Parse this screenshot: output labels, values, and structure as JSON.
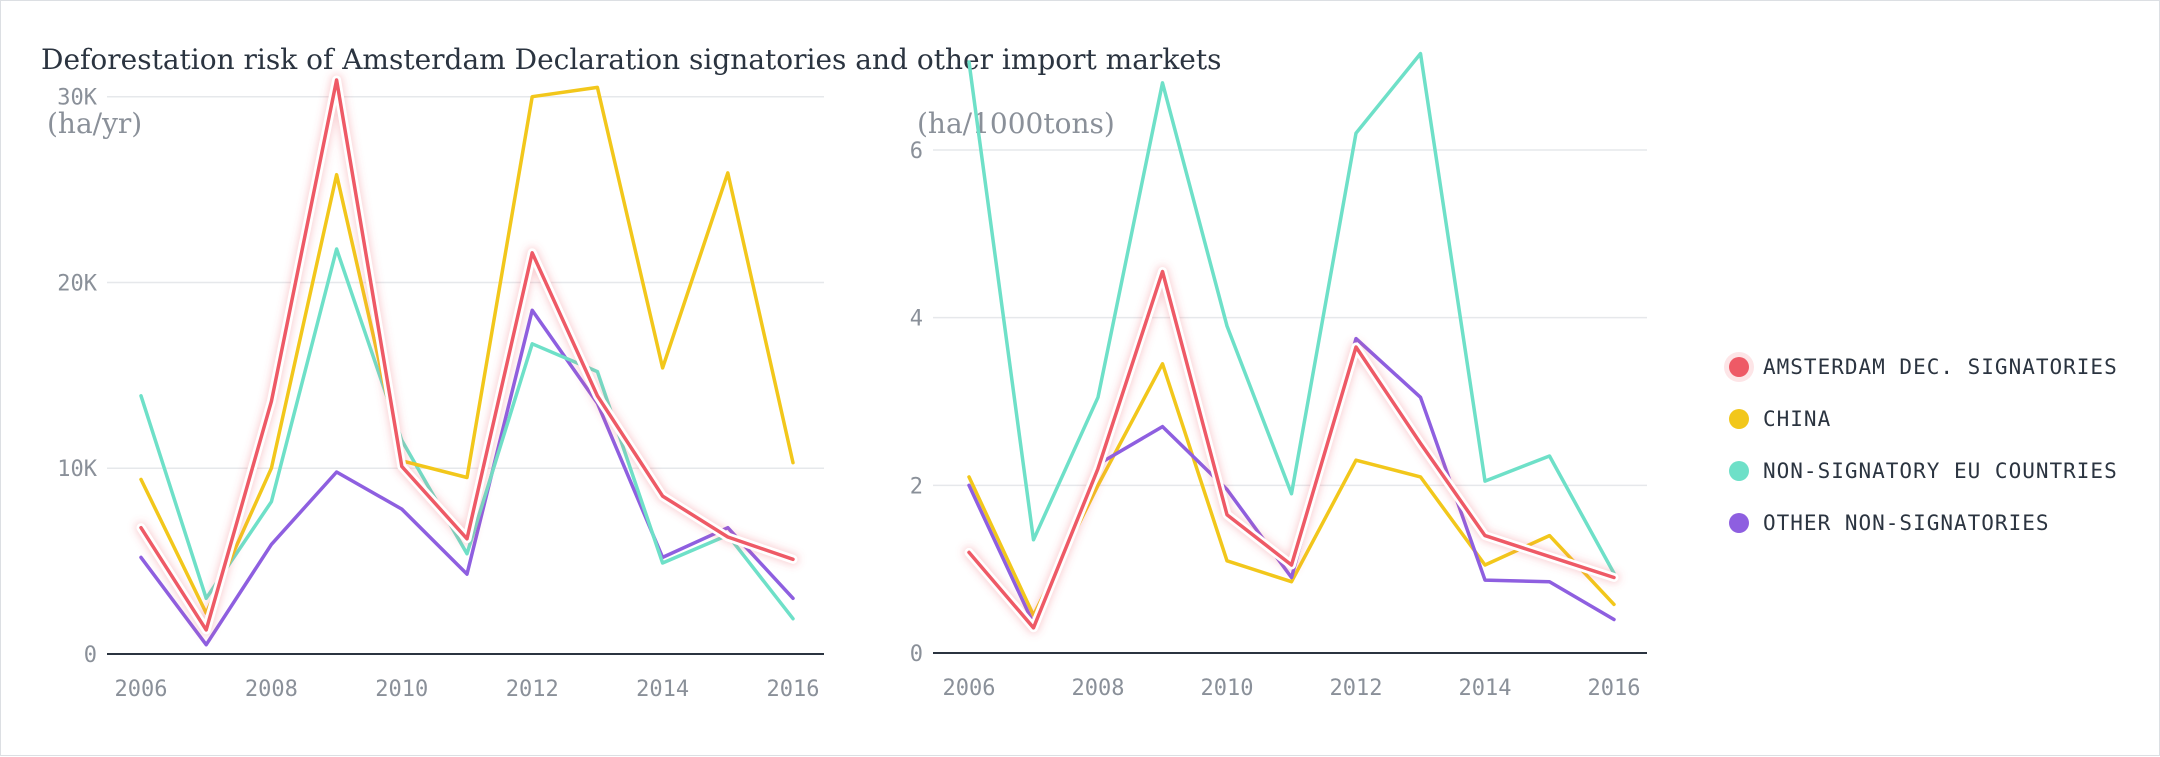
{
  "title": "Deforestation risk of Amsterdam Declaration signatories and other import markets",
  "colors": {
    "amsterdam": "#ee5a66",
    "china": "#f2c71b",
    "eu": "#6ee0c8",
    "other": "#8e5fe0"
  },
  "legend": {
    "placement": "right",
    "items": [
      {
        "key": "amsterdam",
        "label": "AMSTERDAM DEC. SIGNATORIES"
      },
      {
        "key": "china",
        "label": "CHINA"
      },
      {
        "key": "eu",
        "label": "NON-SIGNATORY EU COUNTRIES"
      },
      {
        "key": "other",
        "label": "OTHER NON-SIGNATORIES"
      }
    ]
  },
  "chart_data": [
    {
      "type": "line",
      "unit_label": "(ha/yr)",
      "x": [
        2006,
        2007,
        2008,
        2009,
        2010,
        2011,
        2012,
        2013,
        2014,
        2015,
        2016
      ],
      "xticks": [
        2006,
        2008,
        2010,
        2012,
        2014,
        2016
      ],
      "ylim": [
        0,
        33000
      ],
      "yticks": [
        0,
        10000,
        20000,
        30000
      ],
      "ytick_labels": [
        "0",
        "10K",
        "20K",
        "30K"
      ],
      "grid": true,
      "series": [
        {
          "key": "other",
          "name": "OTHER NON-SIGNATORIES",
          "values": [
            5200,
            500,
            5900,
            9800,
            7800,
            4300,
            18500,
            13500,
            5200,
            6800,
            3000
          ]
        },
        {
          "key": "eu",
          "name": "NON-SIGNATORY EU COUNTRIES",
          "values": [
            13900,
            3000,
            8200,
            21800,
            11500,
            5400,
            16700,
            15200,
            4900,
            6400,
            1900
          ]
        },
        {
          "key": "china",
          "name": "CHINA",
          "values": [
            9400,
            2200,
            10000,
            25800,
            10400,
            9500,
            30000,
            30500,
            15400,
            25900,
            10300
          ]
        },
        {
          "key": "amsterdam",
          "name": "AMSTERDAM DEC. SIGNATORIES",
          "values": [
            6800,
            1300,
            13600,
            30900,
            10100,
            6200,
            21600,
            13900,
            8500,
            6300,
            5100
          ]
        }
      ]
    },
    {
      "type": "line",
      "unit_label": "(ha/1000tons)",
      "x": [
        2006,
        2007,
        2008,
        2009,
        2010,
        2011,
        2012,
        2013,
        2014,
        2015,
        2016
      ],
      "xticks": [
        2006,
        2008,
        2010,
        2012,
        2014,
        2016
      ],
      "ylim": [
        0,
        7.3
      ],
      "yticks": [
        0,
        2,
        4,
        6
      ],
      "ytick_labels": [
        "0",
        "2",
        "4",
        "6"
      ],
      "grid": true,
      "series": [
        {
          "key": "eu",
          "name": "NON-SIGNATORY EU COUNTRIES",
          "values": [
            7.05,
            1.35,
            3.05,
            6.8,
            3.9,
            1.9,
            6.2,
            7.15,
            2.05,
            2.35,
            0.95
          ]
        },
        {
          "key": "china",
          "name": "CHINA",
          "values": [
            2.1,
            0.45,
            2.0,
            3.45,
            1.1,
            0.85,
            2.3,
            2.1,
            1.05,
            1.4,
            0.58
          ]
        },
        {
          "key": "other",
          "name": "OTHER NON-SIGNATORIES",
          "values": [
            2.0,
            0.35,
            2.25,
            2.7,
            1.95,
            0.9,
            3.75,
            3.05,
            0.87,
            0.85,
            0.4
          ]
        },
        {
          "key": "amsterdam",
          "name": "AMSTERDAM DEC. SIGNATORIES",
          "values": [
            1.2,
            0.3,
            2.2,
            4.55,
            1.65,
            1.05,
            3.65,
            2.5,
            1.4,
            1.15,
            0.9
          ]
        }
      ]
    }
  ]
}
